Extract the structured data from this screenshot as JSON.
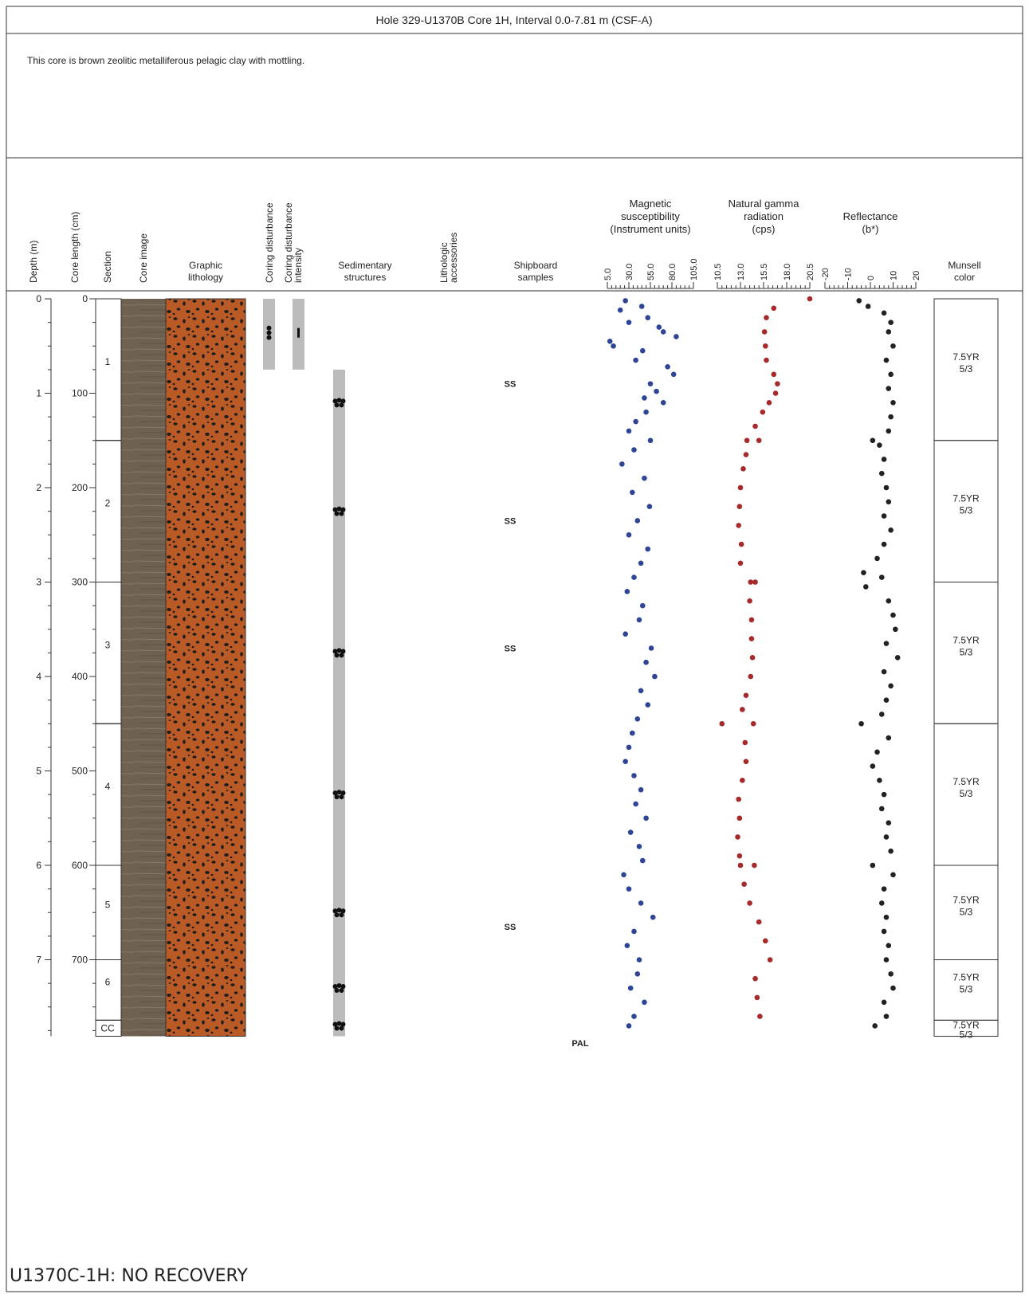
{
  "header": {
    "title": "Hole 329-U1370B Core 1H, Interval 0.0-7.81 m (CSF-A)"
  },
  "description": "This core is brown zeolitic metalliferous pelagic clay with mottling.",
  "columns": [
    [
      "Depth (m)"
    ],
    [
      "Core length (cm)"
    ],
    [
      "Section"
    ],
    [
      "Core image"
    ],
    [
      "Graphic",
      "lithology"
    ],
    [
      "Coring disturbance"
    ],
    [
      "Coring disturbance",
      "intensity"
    ],
    [
      "Sedimentary",
      "structures"
    ],
    [
      "Lithologic",
      "accessories"
    ],
    [
      "Shipboard",
      "samples"
    ],
    [
      "Munsell",
      "color"
    ]
  ],
  "depth_axis": {
    "ylim": [
      0,
      7.81
    ],
    "ticks": [
      0,
      1,
      2,
      3,
      4,
      5,
      6,
      7
    ]
  },
  "core_length_ticks": [
    0,
    100,
    200,
    300,
    400,
    500,
    600,
    700
  ],
  "sections": [
    {
      "label": "1",
      "top": 0,
      "bottom": 1.5,
      "munsell": [
        "7.5YR",
        "5/3"
      ]
    },
    {
      "label": "2",
      "top": 1.5,
      "bottom": 3.0,
      "munsell": [
        "7.5YR",
        "5/3"
      ]
    },
    {
      "label": "3",
      "top": 3.0,
      "bottom": 4.5,
      "munsell": [
        "7.5YR",
        "5/3"
      ]
    },
    {
      "label": "4",
      "top": 4.5,
      "bottom": 6.0,
      "munsell": [
        "7.5YR",
        "5/3"
      ]
    },
    {
      "label": "5",
      "top": 6.0,
      "bottom": 7.0,
      "munsell": [
        "7.5YR",
        "5/3"
      ]
    },
    {
      "label": "6",
      "top": 7.0,
      "bottom": 7.64,
      "munsell": [
        "7.5YR",
        "5/3"
      ]
    },
    {
      "label": "CC",
      "top": 7.64,
      "bottom": 7.81,
      "munsell": [
        "7.5YR",
        "5/3"
      ]
    }
  ],
  "coring_disturbance": {
    "top": 0,
    "bottom": 0.75,
    "symbol_depth": 0.36
  },
  "coring_disturbance_intensity": {
    "top": 0,
    "bottom": 0.75,
    "symbol_depth": 0.36
  },
  "sedimentary_structures": {
    "top": 0.75,
    "bottom": 7.81,
    "symbol_depths": [
      1.1,
      2.25,
      3.75,
      5.25,
      6.5,
      7.3,
      7.7
    ]
  },
  "shipboard_samples": [
    {
      "label": "SS",
      "depth": 0.9
    },
    {
      "label": "SS",
      "depth": 2.35
    },
    {
      "label": "SS",
      "depth": 3.7
    },
    {
      "label": "SS",
      "depth": 6.65
    },
    {
      "label": "PAL",
      "depth": 7.88
    }
  ],
  "chart_data": [
    {
      "type": "scatter",
      "title": [
        "Magnetic",
        "susceptibility",
        "(Instrument units)"
      ],
      "color": "#2e4596",
      "xlim": [
        5,
        105
      ],
      "xticks": [
        {
          "value": 5,
          "label": "5.0"
        },
        {
          "value": 30,
          "label": "30.0"
        },
        {
          "value": 55,
          "label": "55.0"
        },
        {
          "value": 80,
          "label": "80.0"
        },
        {
          "value": 105,
          "label": "105.0"
        }
      ],
      "ylim": [
        0,
        7.81
      ],
      "y": [
        0.02,
        0.08,
        0.12,
        0.2,
        0.25,
        0.3,
        0.35,
        0.4,
        0.45,
        0.5,
        0.55,
        0.65,
        0.72,
        0.8,
        0.9,
        0.98,
        1.05,
        1.1,
        1.2,
        1.3,
        1.4,
        1.5,
        1.6,
        1.75,
        1.9,
        2.05,
        2.2,
        2.35,
        2.5,
        2.65,
        2.8,
        2.95,
        3.1,
        3.25,
        3.4,
        3.55,
        3.7,
        3.85,
        4.0,
        4.15,
        4.3,
        4.45,
        4.6,
        4.75,
        4.9,
        5.05,
        5.2,
        5.35,
        5.5,
        5.65,
        5.8,
        5.95,
        6.1,
        6.25,
        6.4,
        6.55,
        6.7,
        6.85,
        7.0,
        7.15,
        7.3,
        7.45,
        7.6,
        7.7
      ],
      "x": [
        26,
        45,
        20,
        52,
        30,
        65,
        70,
        85,
        8,
        12,
        46,
        38,
        75,
        82,
        55,
        62,
        48,
        70,
        50,
        38,
        30,
        55,
        36,
        22,
        48,
        34,
        54,
        40,
        30,
        52,
        44,
        36,
        28,
        46,
        42,
        26,
        56,
        50,
        60,
        44,
        52,
        40,
        34,
        30,
        26,
        36,
        44,
        38,
        50,
        32,
        42,
        46,
        24,
        30,
        44,
        58,
        36,
        28,
        42,
        40,
        32,
        48,
        36,
        30
      ]
    },
    {
      "type": "scatter",
      "title": [
        "Natural gamma",
        "radiation",
        "(cps)"
      ],
      "color": "#a62a2a",
      "xlim": [
        10.5,
        20.5
      ],
      "xticks": [
        10.5,
        {
          "value": 13,
          "label": "13.0"
        },
        15.5,
        {
          "value": 18,
          "label": "18.0"
        },
        20.5
      ],
      "ylim": [
        0,
        7.81
      ],
      "y": [
        0.0,
        0.1,
        0.2,
        0.35,
        0.5,
        0.65,
        0.8,
        0.9,
        1.0,
        1.1,
        1.2,
        1.35,
        1.5,
        1.5,
        1.65,
        1.8,
        2.0,
        2.2,
        2.4,
        2.6,
        2.8,
        3.0,
        3.0,
        3.2,
        3.4,
        3.6,
        3.8,
        4.0,
        4.2,
        4.35,
        4.5,
        4.5,
        4.7,
        4.9,
        5.1,
        5.3,
        5.5,
        5.7,
        5.9,
        6.0,
        6.0,
        6.2,
        6.4,
        6.6,
        6.8,
        7.0,
        7.2,
        7.4,
        7.6
      ],
      "x": [
        20.5,
        16.6,
        15.8,
        15.6,
        15.7,
        15.8,
        16.6,
        17.0,
        16.8,
        16.1,
        15.4,
        14.6,
        13.7,
        15.0,
        13.6,
        13.3,
        13.0,
        12.9,
        12.8,
        13.1,
        13.0,
        14.1,
        14.6,
        14.0,
        14.2,
        14.2,
        14.3,
        14.1,
        13.6,
        13.2,
        11.0,
        14.4,
        13.5,
        13.6,
        13.2,
        12.8,
        12.9,
        12.7,
        12.9,
        13.0,
        14.5,
        13.4,
        14.0,
        15.0,
        15.7,
        16.2,
        14.6,
        14.8,
        15.1
      ]
    },
    {
      "type": "scatter",
      "title": [
        "Reflectance",
        "(b*)"
      ],
      "color": "#222222",
      "xlim": [
        -20,
        20
      ],
      "xticks": [
        -20,
        -10,
        0,
        10,
        20
      ],
      "ylim": [
        0,
        7.81
      ],
      "y": [
        0.02,
        0.08,
        0.15,
        0.25,
        0.35,
        0.5,
        0.65,
        0.8,
        0.95,
        1.1,
        1.25,
        1.4,
        1.5,
        1.55,
        1.7,
        1.85,
        2.0,
        2.15,
        2.3,
        2.45,
        2.6,
        2.75,
        2.9,
        2.95,
        3.05,
        3.2,
        3.35,
        3.5,
        3.65,
        3.8,
        3.95,
        4.1,
        4.25,
        4.4,
        4.5,
        4.65,
        4.8,
        4.95,
        5.1,
        5.25,
        5.4,
        5.55,
        5.7,
        5.85,
        6.0,
        6.1,
        6.25,
        6.4,
        6.55,
        6.7,
        6.85,
        7.0,
        7.15,
        7.3,
        7.45,
        7.6,
        7.7
      ],
      "x": [
        -5,
        -1,
        6,
        9,
        8,
        10,
        7,
        9,
        8,
        10,
        9,
        8,
        1,
        4,
        6,
        5,
        7,
        8,
        6,
        9,
        6,
        3,
        -3,
        5,
        -2,
        8,
        10,
        11,
        7,
        12,
        6,
        9,
        7,
        5,
        -4,
        8,
        3,
        1,
        4,
        6,
        5,
        8,
        7,
        9,
        1,
        10,
        6,
        5,
        7,
        6,
        8,
        7,
        9,
        10,
        6,
        7,
        2
      ]
    }
  ],
  "footer": "U1370C-1H: NO RECOVERY"
}
